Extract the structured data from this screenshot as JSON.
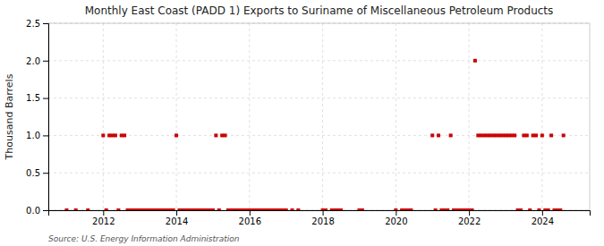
{
  "chart_data": {
    "type": "scatter",
    "title": "Monthly East Coast (PADD 1) Exports to Suriname of Miscellaneous Petroleum Products",
    "y_label": "Thousand Barrels",
    "annotations": [
      "Source: U.S. Energy Information Administration"
    ],
    "color": "#cc0000",
    "marker": "square",
    "grid": true,
    "xlim": [
      2010.5,
      2025.3
    ],
    "xticks": [
      2012,
      2014,
      2016,
      2018,
      2020,
      2022,
      2024
    ],
    "ylim": [
      0.0,
      2.5
    ],
    "yticks": [
      {
        "value": 0.0,
        "label": "0.0"
      },
      {
        "value": 0.5,
        "label": "0.5"
      },
      {
        "value": 1.0,
        "label": "1.0"
      },
      {
        "value": 1.5,
        "label": "1.5"
      },
      {
        "value": 2.0,
        "label": "2.0"
      },
      {
        "value": 2.5,
        "label": "2.5"
      }
    ],
    "x": [
      2011,
      2011.25,
      2011.5833333333333,
      2012,
      2012.1666666666667,
      2012.25,
      2012.3333333333333,
      2012.5,
      2012.5833333333333,
      2012.0833333333333,
      2012.4166666666667,
      2012.6666666666667,
      2012.75,
      2012.8333333333333,
      2012.9166666666667,
      2013,
      2013.0833333333333,
      2013.1666666666667,
      2013.25,
      2013.3333333333333,
      2013.4166666666667,
      2013.5,
      2013.5833333333333,
      2013.6666666666667,
      2013.75,
      2013.8333333333333,
      2013.9166666666667,
      2014.0833333333333,
      2014.1666666666667,
      2014.25,
      2014.3333333333333,
      2014.4166666666667,
      2014.5,
      2014.5833333333333,
      2014.6666666666667,
      2014.75,
      2014.8333333333333,
      2014.9166666666667,
      2014,
      2015.0833333333333,
      2015.25,
      2015.3333333333333,
      2015,
      2015.1666666666667,
      2015.4166666666667,
      2015.5,
      2015.5833333333333,
      2015.6666666666667,
      2015.75,
      2015.8333333333333,
      2015.9166666666667,
      2016,
      2016.0833333333333,
      2016.1666666666667,
      2016.25,
      2016.3333333333333,
      2016.4166666666667,
      2016.5,
      2016.5833333333333,
      2016.6666666666667,
      2016.75,
      2016.8333333333333,
      2016.9166666666667,
      2017,
      2017.1666666666667,
      2017.3333333333333,
      2018,
      2018.0833333333333,
      2018.25,
      2018.3333333333333,
      2018.4166666666667,
      2018.5,
      2019,
      2019.0833333333333,
      2020,
      2020.1666666666667,
      2020.25,
      2020.3333333333333,
      2020.4166666666667,
      2021,
      2021.1666666666667,
      2021.5,
      2021.0833333333333,
      2021.25,
      2021.3333333333333,
      2021.4166666666667,
      2021.5833333333333,
      2021.6666666666667,
      2021.75,
      2021.8333333333333,
      2021.9166666666667,
      2022,
      2022.0833333333333,
      2022.1666666666667,
      2022.25,
      2022.3333333333333,
      2022.4166666666667,
      2022.5,
      2022.5833333333333,
      2022.6666666666667,
      2022.75,
      2022.8333333333333,
      2022.9166666666667,
      2023,
      2023.0833333333333,
      2023.1666666666667,
      2023.25,
      2023.3333333333333,
      2023.4166666666667,
      2023.5,
      2023.5833333333333,
      2023.6666666666667,
      2023.75,
      2023.8333333333333,
      2023.9166666666667,
      2024,
      2024.0833333333333,
      2024.1666666666667,
      2024.25,
      2024.3333333333333,
      2024.4166666666667,
      2024.5,
      2024.5833333333333
    ],
    "values": [
      0,
      0,
      0,
      1,
      1,
      1,
      1,
      1,
      1,
      0,
      0,
      0,
      0,
      0,
      0,
      0,
      0,
      0,
      0,
      0,
      0,
      0,
      0,
      0,
      0,
      0,
      0,
      0,
      0,
      0,
      0,
      0,
      0,
      0,
      0,
      0,
      0,
      0,
      1,
      1,
      1,
      1,
      0,
      0,
      0,
      0,
      0,
      0,
      0,
      0,
      0,
      0,
      0,
      0,
      0,
      0,
      0,
      0,
      0,
      0,
      0,
      0,
      0,
      0,
      0,
      0,
      0,
      0,
      0,
      0,
      0,
      0,
      0,
      0,
      0,
      0,
      0,
      0,
      0,
      1,
      1,
      1,
      0,
      0,
      0,
      0,
      0,
      0,
      0,
      0,
      0,
      0,
      0,
      2,
      1,
      1,
      1,
      1,
      1,
      1,
      1,
      1,
      1,
      1,
      1,
      1,
      1,
      0,
      0,
      1,
      1,
      0,
      1,
      1,
      0,
      1,
      0,
      0,
      1,
      0,
      0,
      0,
      1
    ]
  }
}
